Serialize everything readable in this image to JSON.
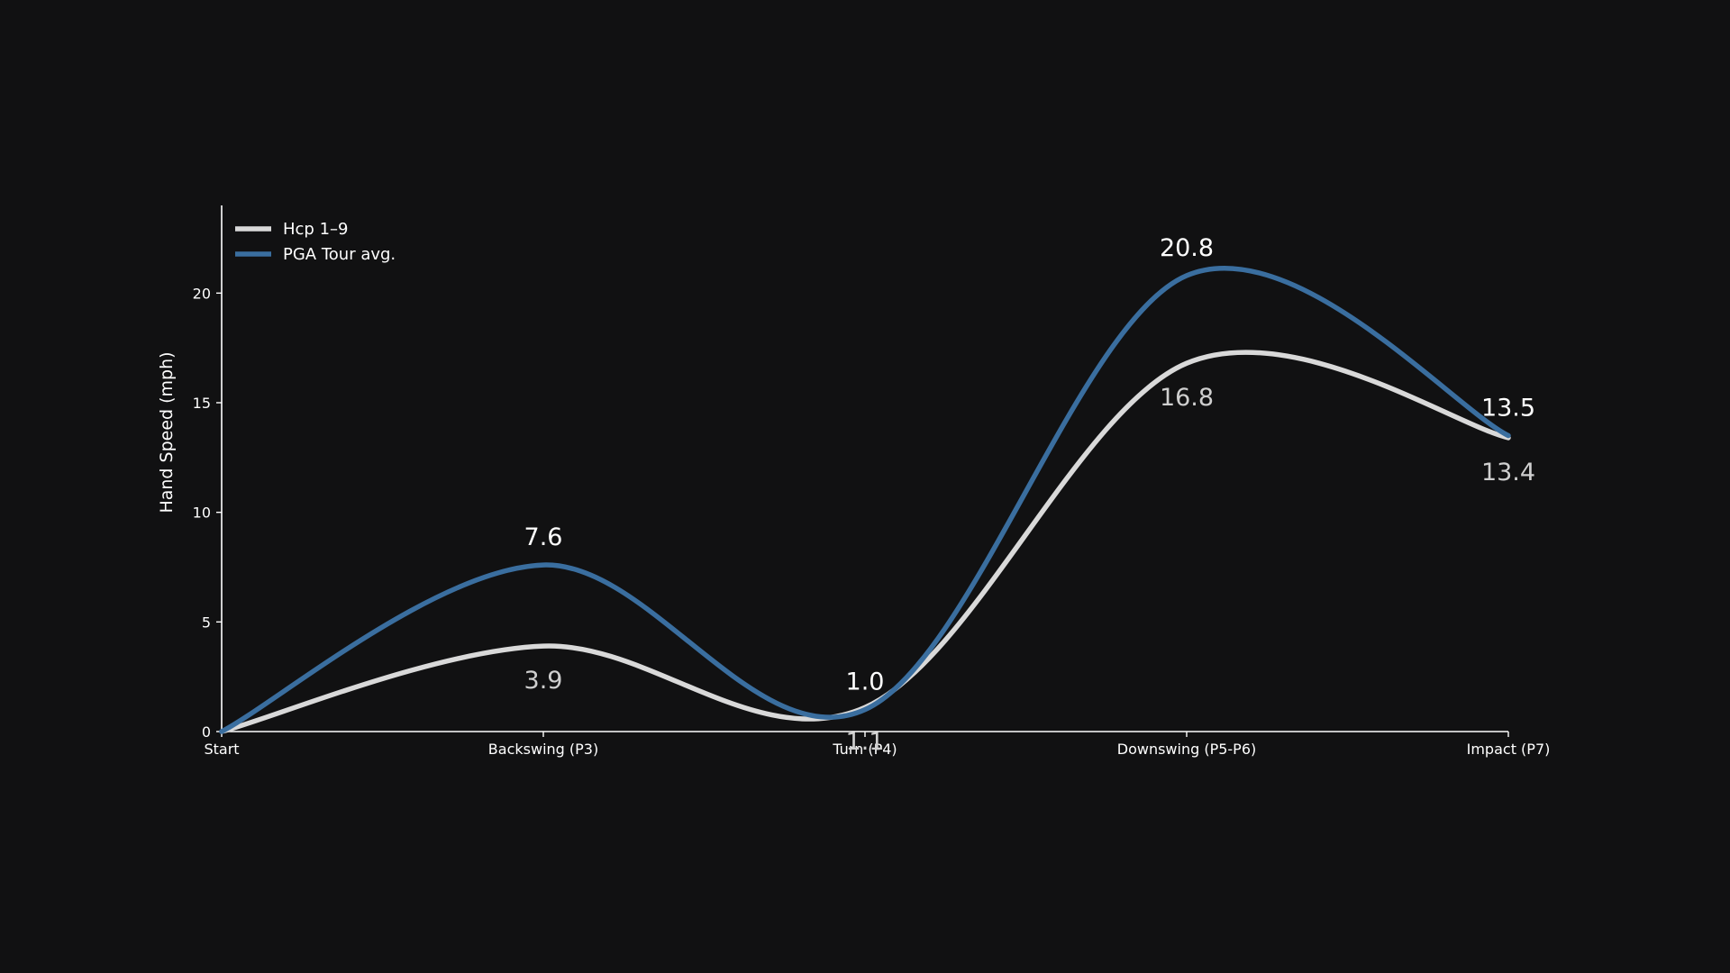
{
  "chart_data": {
    "type": "line",
    "categories": [
      "Start",
      "Backswing (P3)",
      "Turn (P4)",
      "Downswing (P5-P6)",
      "Impact (P7)"
    ],
    "ylabel": "Hand Speed (mph)",
    "xlabel": "",
    "ylim": [
      0,
      24
    ],
    "yticks": [
      0,
      5,
      10,
      15,
      20
    ],
    "grid": false,
    "smooth": true,
    "legend": "top-left",
    "series": [
      {
        "name": "Hcp 1–9",
        "color": "#d9d9d9",
        "values": [
          0,
          3.9,
          1.1,
          16.8,
          13.4
        ],
        "labels": [
          "",
          "3.9",
          "1.1",
          "16.8",
          "13.4"
        ]
      },
      {
        "name": "PGA Tour avg.",
        "color": "#3a6e9f",
        "values": [
          0,
          7.6,
          1.0,
          20.8,
          13.5
        ],
        "labels": [
          "",
          "7.6",
          "1.0",
          "20.8",
          "13.5"
        ]
      }
    ]
  }
}
